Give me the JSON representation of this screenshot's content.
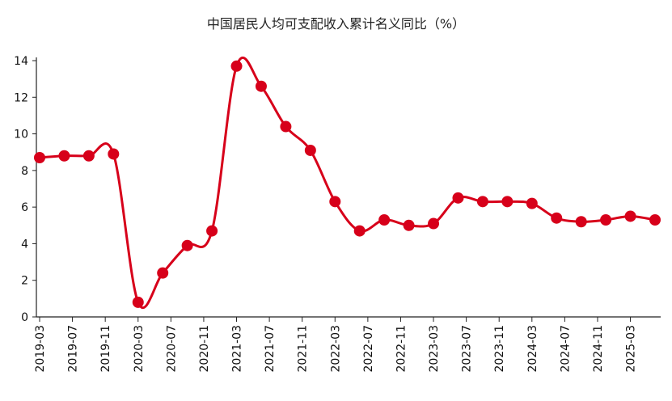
{
  "chart_data": {
    "type": "line",
    "title": "中国居民人均可支配收入累计名义同比（%）",
    "xlabel": "",
    "ylabel": "",
    "ylim": [
      0,
      14
    ],
    "yticks": [
      0,
      2,
      4,
      6,
      8,
      10,
      12,
      14
    ],
    "x": [
      "2019-03",
      "2019-06",
      "2019-09",
      "2019-12",
      "2020-03",
      "2020-06",
      "2020-09",
      "2020-12",
      "2021-03",
      "2021-06",
      "2021-09",
      "2021-12",
      "2022-03",
      "2022-06",
      "2022-09",
      "2022-12",
      "2023-03",
      "2023-06",
      "2023-09",
      "2023-12",
      "2024-03",
      "2024-06",
      "2024-09",
      "2024-12",
      "2025-03",
      "2025-06"
    ],
    "xticks": [
      "2019-03",
      "2019-07",
      "2019-11",
      "2020-03",
      "2020-07",
      "2020-11",
      "2021-03",
      "2021-07",
      "2021-11",
      "2022-03",
      "2022-07",
      "2022-11",
      "2023-03",
      "2023-07",
      "2023-11",
      "2024-03",
      "2024-07",
      "2024-11",
      "2025-03"
    ],
    "series": [
      {
        "name": "",
        "color": "#d7001a",
        "values": [
          8.7,
          8.8,
          8.8,
          8.9,
          0.8,
          2.4,
          3.9,
          4.7,
          13.7,
          12.6,
          10.4,
          9.1,
          6.3,
          4.7,
          5.3,
          5.0,
          5.1,
          6.5,
          6.3,
          6.3,
          6.2,
          5.4,
          5.2,
          5.3,
          5.5,
          5.3
        ]
      }
    ],
    "grid": false,
    "legend": "none"
  }
}
